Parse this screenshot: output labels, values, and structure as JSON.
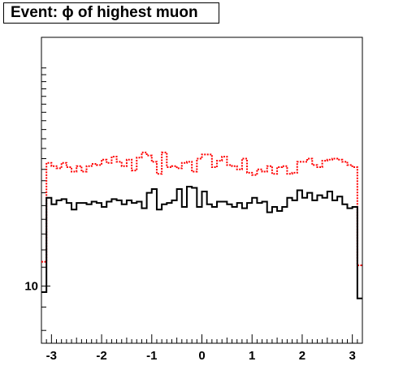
{
  "title": "Event: ϕ of highest muon",
  "chart_data": {
    "type": "line",
    "title": "Event: ϕ of highest muon",
    "xlabel": "",
    "ylabel": "",
    "xlim": [
      -3.2,
      3.2
    ],
    "ylim": [
      7.5,
      35
    ],
    "yscale": "log",
    "x_ticks": [
      -3,
      -2,
      -1,
      0,
      1,
      2,
      3
    ],
    "x_tick_labels": [
      "-3",
      "-2",
      "-1",
      "0",
      "1",
      "2",
      "3"
    ],
    "y_ticks": [
      10
    ],
    "y_tick_labels": [
      "10"
    ],
    "grid": false,
    "legend": "none",
    "bin_edges": [
      -3.2,
      -3.1,
      -3.0,
      -2.9,
      -2.8,
      -2.7,
      -2.6,
      -2.5,
      -2.4,
      -2.3,
      -2.2,
      -2.1,
      -2.0,
      -1.9,
      -1.8,
      -1.7,
      -1.6,
      -1.5,
      -1.4,
      -1.3,
      -1.2,
      -1.1,
      -1.0,
      -0.9,
      -0.8,
      -0.7,
      -0.6,
      -0.5,
      -0.4,
      -0.3,
      -0.2,
      -0.1,
      0.0,
      0.1,
      0.2,
      0.3,
      0.4,
      0.5,
      0.6,
      0.7,
      0.8,
      0.9,
      1.0,
      1.1,
      1.2,
      1.3,
      1.4,
      1.5,
      1.6,
      1.7,
      1.8,
      1.9,
      2.0,
      2.1,
      2.2,
      2.3,
      2.4,
      2.5,
      2.6,
      2.7,
      2.8,
      2.9,
      3.0,
      3.1,
      3.2
    ],
    "series": [
      {
        "color": "#ff0000",
        "style": "dotted",
        "values": [
          11.3,
          18.6,
          18.3,
          18.1,
          18.6,
          18.2,
          17.8,
          18.3,
          17.8,
          18.3,
          18.5,
          18.4,
          18.9,
          18.6,
          19.2,
          18.7,
          18.3,
          18.9,
          17.9,
          19.1,
          19.6,
          19.3,
          18.7,
          17.6,
          19.6,
          18.2,
          18.3,
          18.1,
          18.6,
          18.7,
          17.8,
          19.0,
          19.4,
          19.4,
          18.2,
          18.8,
          19.2,
          18.4,
          18.3,
          18.0,
          19.0,
          17.7,
          17.5,
          18.0,
          17.8,
          18.3,
          17.6,
          18.2,
          18.3,
          17.6,
          17.7,
          18.7,
          18.7,
          19.0,
          18.4,
          18.2,
          18.8,
          18.9,
          19.0,
          18.9,
          18.7,
          18.4,
          18.2,
          11.1
        ]
      },
      {
        "color": "#000000",
        "style": "solid",
        "values": [
          9.7,
          15.6,
          15.1,
          15.4,
          15.5,
          15.2,
          14.7,
          15.2,
          15.2,
          15.1,
          15.3,
          15.2,
          14.9,
          15.3,
          15.5,
          15.4,
          15.1,
          15.4,
          15.2,
          15.3,
          14.8,
          16.0,
          16.3,
          14.7,
          15.1,
          15.2,
          15.4,
          16.3,
          14.9,
          16.5,
          16.4,
          14.9,
          16.1,
          15.1,
          14.9,
          15.3,
          15.3,
          15.1,
          14.9,
          15.2,
          14.8,
          15.2,
          15.6,
          15.2,
          15.3,
          14.5,
          14.9,
          14.6,
          14.9,
          15.6,
          15.4,
          16.2,
          15.6,
          16.0,
          15.4,
          15.8,
          15.6,
          16.1,
          15.4,
          15.7,
          15.1,
          14.8,
          14.9,
          9.4
        ]
      }
    ]
  }
}
